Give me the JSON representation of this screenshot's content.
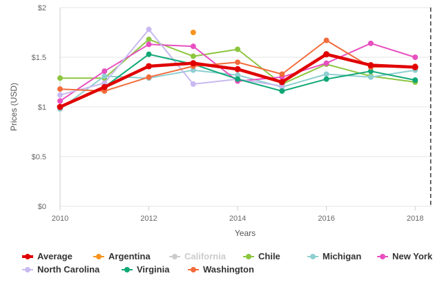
{
  "chart_data": {
    "type": "line",
    "ylabel": "Prices (USD)",
    "xlabel": "Years",
    "xlim": [
      2010,
      2018.2
    ],
    "ylim": [
      0,
      2
    ],
    "x_ticks": [
      2010,
      2012,
      2014,
      2016,
      2018
    ],
    "y_ticks": [
      {
        "value": 0,
        "label": "$0"
      },
      {
        "value": 0.5,
        "label": "$0.5"
      },
      {
        "value": 1,
        "label": "$1"
      },
      {
        "value": 1.5,
        "label": "$1.5"
      },
      {
        "value": 2,
        "label": "$2"
      }
    ],
    "grid": "horizontal",
    "legend_position": "bottom",
    "marker_line": {
      "x": 2018.35,
      "style": "dashed"
    },
    "x": [
      2010,
      2011,
      2012,
      2013,
      2014,
      2015,
      2016,
      2017,
      2018
    ],
    "series": [
      {
        "name": "Average",
        "color": "#e00000",
        "width": 4.5,
        "values": [
          1.0,
          1.2,
          1.41,
          1.44,
          1.38,
          1.25,
          1.53,
          1.42,
          1.4
        ]
      },
      {
        "name": "Argentina",
        "color": "#f7941d",
        "width": 2,
        "points_only": true,
        "values": [
          null,
          null,
          null,
          1.75,
          null,
          null,
          null,
          null,
          null
        ]
      },
      {
        "name": "California",
        "color": "#cccccc",
        "width": 2,
        "hidden": true,
        "values": [
          null,
          null,
          null,
          null,
          null,
          null,
          null,
          null,
          null
        ]
      },
      {
        "name": "Chile",
        "color": "#8cc63f",
        "width": 2,
        "values": [
          1.29,
          1.29,
          1.68,
          1.51,
          1.58,
          1.23,
          1.43,
          1.31,
          1.25
        ]
      },
      {
        "name": "Michigan",
        "color": "#8fcfd0",
        "width": 2,
        "values": [
          0.98,
          1.31,
          1.29,
          1.37,
          1.32,
          1.2,
          1.33,
          1.3,
          1.37
        ]
      },
      {
        "name": "New York",
        "color": "#e84fbf",
        "width": 2,
        "values": [
          1.06,
          1.36,
          1.63,
          1.61,
          1.26,
          1.3,
          1.44,
          1.64,
          1.5
        ]
      },
      {
        "name": "North Carolina",
        "color": "#c8b9f0",
        "width": 2,
        "values": [
          1.12,
          1.24,
          1.78,
          1.23,
          1.28,
          1.21,
          null,
          null,
          null
        ]
      },
      {
        "name": "Virginia",
        "color": "#0fa776",
        "width": 2,
        "values": [
          1.0,
          1.2,
          1.53,
          1.43,
          1.28,
          1.16,
          1.28,
          1.36,
          1.27
        ]
      },
      {
        "name": "Washington",
        "color": "#f26b3a",
        "width": 2,
        "values": [
          1.18,
          1.16,
          1.3,
          1.41,
          1.45,
          1.33,
          1.67,
          1.4,
          1.41
        ]
      }
    ],
    "legend": {
      "rows": [
        [
          "Average",
          "Argentina",
          "California",
          "Chile",
          "Michigan",
          "New York"
        ],
        [
          "North Carolina",
          "Virginia",
          "Washington"
        ]
      ]
    }
  }
}
